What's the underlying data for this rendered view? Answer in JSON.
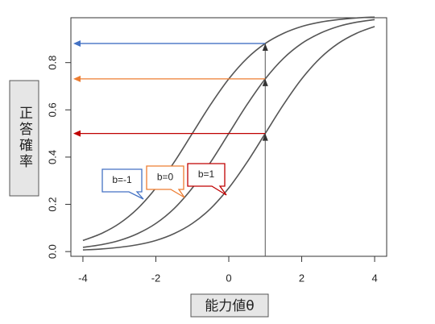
{
  "chart_data": {
    "type": "line",
    "x_label": "能力値θ",
    "y_label": "正答確率",
    "x": [
      -4,
      -3.5,
      -3,
      -2.5,
      -2,
      -1.5,
      -1,
      -0.5,
      0,
      0.5,
      1,
      1.5,
      2,
      2.5,
      3,
      3.5,
      4
    ],
    "series": [
      {
        "name": "b=-1",
        "color": "#555555",
        "callout_color": "#4472c4",
        "values": [
          0.047,
          0.076,
          0.119,
          0.182,
          0.269,
          0.378,
          0.5,
          0.622,
          0.731,
          0.818,
          0.881,
          0.924,
          0.953,
          0.971,
          0.982,
          0.989,
          0.993
        ]
      },
      {
        "name": "b=0",
        "color": "#555555",
        "callout_color": "#ed7d31",
        "values": [
          0.018,
          0.029,
          0.047,
          0.076,
          0.119,
          0.182,
          0.269,
          0.378,
          0.5,
          0.622,
          0.731,
          0.818,
          0.881,
          0.924,
          0.953,
          0.971,
          0.982
        ]
      },
      {
        "name": "b=1",
        "color": "#555555",
        "callout_color": "#c00000",
        "values": [
          0.007,
          0.011,
          0.018,
          0.029,
          0.047,
          0.076,
          0.119,
          0.182,
          0.269,
          0.378,
          0.5,
          0.622,
          0.731,
          0.818,
          0.881,
          0.924,
          0.953
        ]
      }
    ],
    "annotations": [
      {
        "x": 1,
        "y": 0.881,
        "color": "#4472c4"
      },
      {
        "x": 1,
        "y": 0.731,
        "color": "#ed7d31"
      },
      {
        "x": 1,
        "y": 0.5,
        "color": "#c00000"
      }
    ],
    "xlim": [
      -4.33,
      4.33
    ],
    "xticks": [
      -4,
      -2,
      0,
      2,
      4
    ],
    "ylim": [
      -0.02,
      0.99
    ],
    "yticks": [
      {
        "value": 0,
        "label": "0.0"
      },
      {
        "value": 0.2,
        "label": "0.2"
      },
      {
        "value": 0.4,
        "label": "0.4"
      },
      {
        "value": 0.6,
        "label": "0.6"
      },
      {
        "value": 0.8,
        "label": "0.8"
      }
    ]
  }
}
